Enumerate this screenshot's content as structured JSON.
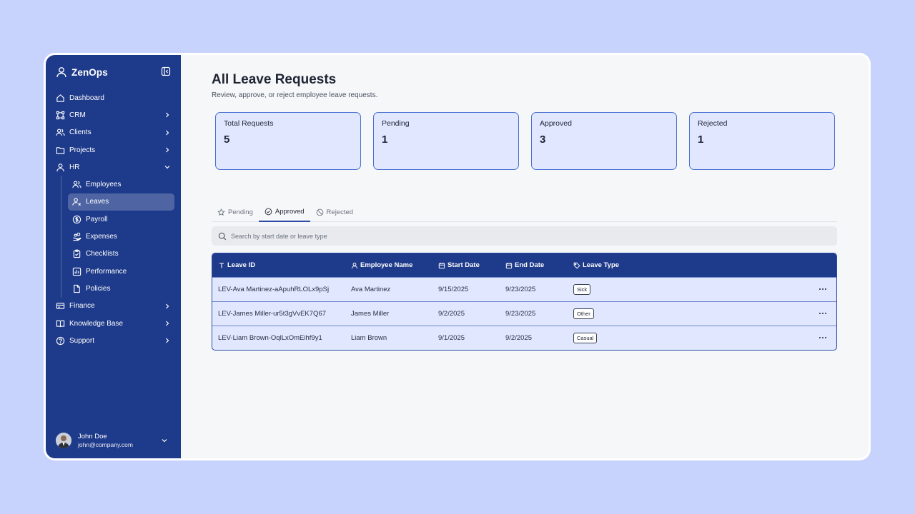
{
  "app": {
    "name": "ZenOps"
  },
  "sidebar": {
    "items": [
      {
        "label": "Dashboard",
        "icon": "home-icon",
        "chevron": false
      },
      {
        "label": "CRM",
        "icon": "crm-icon",
        "chevron": true
      },
      {
        "label": "Clients",
        "icon": "users-icon",
        "chevron": true
      },
      {
        "label": "Projects",
        "icon": "folder-icon",
        "chevron": true
      },
      {
        "label": "HR",
        "icon": "user-icon",
        "chevron": "down"
      }
    ],
    "hr_children": [
      {
        "label": "Employees",
        "icon": "users-icon"
      },
      {
        "label": "Leaves",
        "icon": "user-x-icon",
        "active": true
      },
      {
        "label": "Payroll",
        "icon": "dollar-circle-icon"
      },
      {
        "label": "Expenses",
        "icon": "hand-coins-icon"
      },
      {
        "label": "Checklists",
        "icon": "clipboard-check-icon"
      },
      {
        "label": "Performance",
        "icon": "chart-icon"
      },
      {
        "label": "Policies",
        "icon": "file-icon"
      }
    ],
    "items_after": [
      {
        "label": "Finance",
        "icon": "card-icon",
        "chevron": true
      },
      {
        "label": "Knowledge Base",
        "icon": "book-icon",
        "chevron": true
      },
      {
        "label": "Support",
        "icon": "help-circle-icon",
        "chevron": true
      }
    ],
    "user": {
      "name": "John Doe",
      "email": "john@company.com"
    }
  },
  "page": {
    "title": "All Leave Requests",
    "subtitle": "Review, approve, or reject employee leave requests."
  },
  "stats": [
    {
      "label": "Total Requests",
      "value": "5"
    },
    {
      "label": "Pending",
      "value": "1"
    },
    {
      "label": "Approved",
      "value": "3"
    },
    {
      "label": "Rejected",
      "value": "1"
    }
  ],
  "tabs": [
    {
      "label": "Pending",
      "icon": "star-icon",
      "active": false
    },
    {
      "label": "Approved",
      "icon": "check-circle-icon",
      "active": true
    },
    {
      "label": "Rejected",
      "icon": "ban-icon",
      "active": false
    }
  ],
  "search": {
    "placeholder": "Search by start date or leave type"
  },
  "table": {
    "columns": [
      "Leave ID",
      "Employee Name",
      "Start Date",
      "End Date",
      "Leave Type"
    ],
    "rows": [
      [
        "LEV-Ava Martinez-aApuhRLOLx9pSj",
        "Ava Martinez",
        "9/15/2025",
        "9/23/2025",
        "Sick"
      ],
      [
        "LEV-James Miller-ur5t3gVvEK7Q67",
        "James Miller",
        "9/2/2025",
        "9/23/2025",
        "Other"
      ],
      [
        "LEV-Liam Brown-OqlLxOmEihf9y1",
        "Liam Brown",
        "9/1/2025",
        "9/2/2025",
        "Casual"
      ]
    ]
  },
  "colors": {
    "sidebar_bg": "#1e3a8a",
    "page_bg": "#c7d3fd",
    "card_bg": "#e0e7ff",
    "accent": "#2d4ba6"
  }
}
